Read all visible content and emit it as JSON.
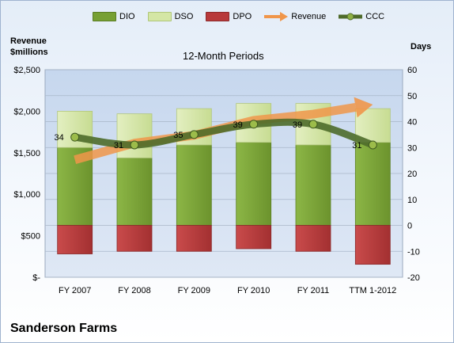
{
  "company": "Sanderson Farms",
  "chart_data": {
    "type": "bar",
    "title": "12-Month Periods",
    "left_axis_label_line1": "Revenue",
    "left_axis_label_line2": "$millions",
    "right_axis_label": "Days",
    "categories": [
      "FY 2007",
      "FY 2008",
      "FY 2009",
      "FY 2010",
      "FY 2011",
      "TTM 1-2012"
    ],
    "left_ylim": [
      0,
      2500
    ],
    "left_ticks": [
      "$-",
      "$500",
      "$1,000",
      "$1,500",
      "$2,000",
      "$2,500"
    ],
    "right_ylim": [
      -20,
      60
    ],
    "right_ticks": [
      "-20",
      "-10",
      "0",
      "10",
      "20",
      "30",
      "40",
      "50",
      "60"
    ],
    "grid": true,
    "legend_position": "top",
    "series": [
      {
        "name": "DIO",
        "axis": "right",
        "kind": "stacked-bar",
        "color": "#77a033",
        "values": [
          30,
          26,
          31,
          32,
          31,
          32
        ]
      },
      {
        "name": "DSO",
        "axis": "right",
        "kind": "stacked-bar",
        "color": "#d4e6a5",
        "values": [
          14,
          17,
          14,
          15,
          16,
          13
        ]
      },
      {
        "name": "DPO",
        "axis": "right",
        "kind": "negative-bar",
        "color": "#b8393a",
        "values": [
          -11,
          -10,
          -10,
          -9,
          -10,
          -15
        ]
      },
      {
        "name": "Revenue",
        "axis": "left",
        "kind": "arrow-line",
        "color": "#f0964a",
        "values": [
          1415,
          1615,
          1710,
          1890,
          1965,
          2080
        ]
      },
      {
        "name": "CCC",
        "axis": "right",
        "kind": "line",
        "color": "#4e6b2a",
        "values": [
          34,
          31,
          35,
          39,
          39,
          31
        ]
      }
    ],
    "data_labels": [
      "34",
      "31",
      "35",
      "39",
      "39",
      "31"
    ]
  }
}
